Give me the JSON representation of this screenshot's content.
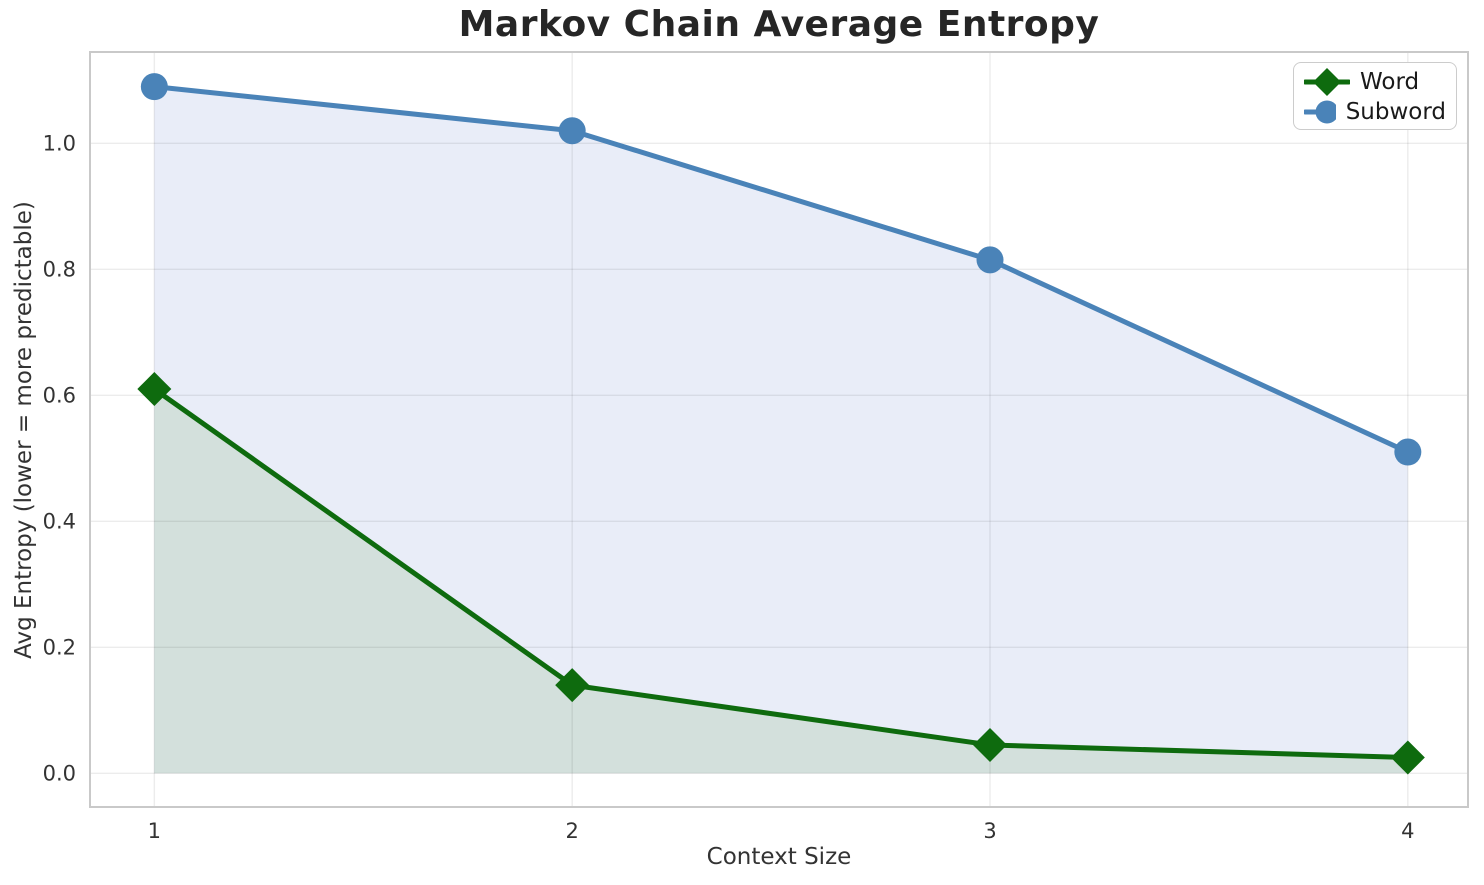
{
  "figure": {
    "background": "#ffffff"
  },
  "chart_data": {
    "type": "line",
    "title": "Markov Chain Average Entropy",
    "xlabel": "Context Size",
    "ylabel": "Avg Entropy (lower = more predictable)",
    "x": [
      1,
      2,
      3,
      4
    ],
    "series": [
      {
        "name": "Word",
        "values": [
          0.61,
          0.14,
          0.045,
          0.025
        ],
        "color": "#0e6b0e",
        "marker": "diamond",
        "area_fill": "#d3e0dc"
      },
      {
        "name": "Subword",
        "values": [
          1.09,
          1.02,
          0.815,
          0.51
        ],
        "color": "#4a83b8",
        "marker": "circle",
        "area_fill": "#e9edf8"
      }
    ],
    "xticks": [
      "1",
      "2",
      "3",
      "4"
    ],
    "xtick_values": [
      1,
      2,
      3,
      4
    ],
    "yticks": [
      "0.0",
      "0.2",
      "0.4",
      "0.6",
      "0.8",
      "1.0"
    ],
    "ytick_values": [
      0,
      0.2,
      0.4,
      0.6,
      0.8,
      1.0
    ],
    "xlim": [
      0.846,
      4.144
    ],
    "ylim": [
      -0.0535,
      1.145
    ],
    "grid": true,
    "area_baseline": 0,
    "legend": {
      "position": "upper right",
      "entries": [
        "Word",
        "Subword"
      ]
    }
  },
  "colors": {
    "title_text": "#262626",
    "axis_text": "#333333",
    "grid_line": "#e8e8e8",
    "spine": "#c9c9c9",
    "word_green": "#0e6b0e",
    "subword_blue": "#4a83b8",
    "word_area": "#d3e0dc",
    "subword_area": "#e9edf8"
  }
}
